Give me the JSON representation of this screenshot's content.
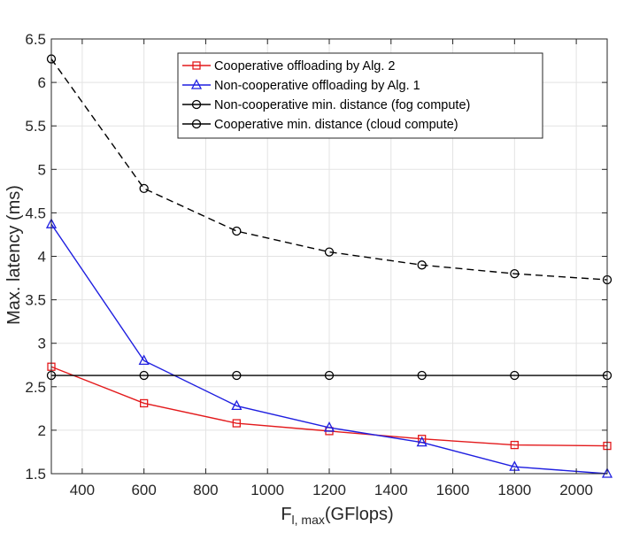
{
  "chart_data": {
    "type": "line",
    "title": "",
    "xlabel": {
      "main": "F",
      "subscript": "l, max",
      "unit": "(GFlops)"
    },
    "ylabel": "Max. latency (ms)",
    "xlim": [
      300,
      2100
    ],
    "ylim": [
      1.5,
      6.5
    ],
    "xticks": [
      400,
      600,
      800,
      1000,
      1200,
      1400,
      1600,
      1800,
      2000
    ],
    "xtick_labels": [
      "400",
      "600",
      "800",
      "1000",
      "1200",
      "1400",
      "1600",
      "1800",
      "2000"
    ],
    "yticks": [
      1.5,
      2,
      2.5,
      3,
      3.5,
      4,
      4.5,
      5,
      5.5,
      6,
      6.5
    ],
    "ytick_labels": [
      "1.5",
      "2",
      "2.5",
      "3",
      "3.5",
      "4",
      "4.5",
      "5",
      "5.5",
      "6",
      "6.5"
    ],
    "grid": true,
    "legend_position": "top-right",
    "x": [
      300,
      600,
      900,
      1200,
      1500,
      1800,
      2100
    ],
    "series": [
      {
        "name": "Cooperative offloading by Alg. 2",
        "color": "#e31a1c",
        "marker": "square",
        "dash": "solid",
        "values": [
          2.73,
          2.31,
          2.08,
          1.99,
          1.9,
          1.83,
          1.82
        ]
      },
      {
        "name": "Non-cooperative offloading by Alg. 1",
        "color": "#1f1fe0",
        "marker": "triangle",
        "dash": "solid",
        "values": [
          4.37,
          2.8,
          2.28,
          2.03,
          1.86,
          1.58,
          1.5
        ]
      },
      {
        "name": "Non-cooperative min. distance (fog compute)",
        "color": "#000000",
        "marker": "circle",
        "dash": "dashed",
        "values": [
          6.27,
          4.78,
          4.29,
          4.05,
          3.9,
          3.8,
          3.73
        ]
      },
      {
        "name": "Cooperative min. distance (cloud compute)",
        "color": "#000000",
        "marker": "circle",
        "dash": "solid",
        "values": [
          2.63,
          2.63,
          2.63,
          2.63,
          2.63,
          2.63,
          2.63
        ]
      }
    ]
  }
}
